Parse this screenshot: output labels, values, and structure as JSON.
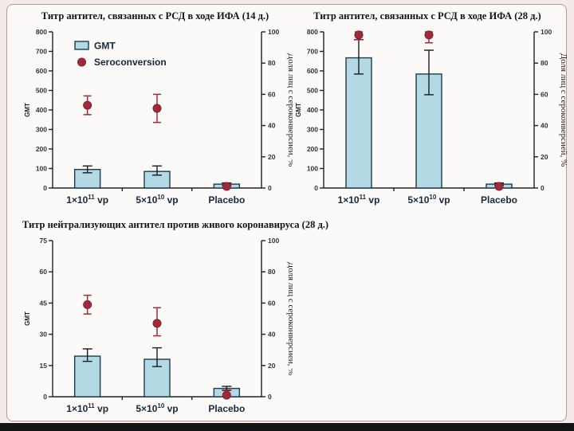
{
  "page": {
    "background": "#f2ebe9",
    "frame_background": "#fcfaf8",
    "frame_border_color": "#c09595",
    "bottom_bar_color": "#131313"
  },
  "colors": {
    "bar_fill": "#b3d9e4",
    "bar_stroke": "#1e3a50",
    "bar_error": "#1b1b1b",
    "dot_fill": "#a02a38",
    "dot_stroke": "#7e1f2b",
    "dot_error": "#a02a38",
    "axis": "#222222",
    "tick_label": "#333333",
    "category_label": "#16293f",
    "legend_text": "#15273c",
    "title_text": "#141414"
  },
  "chart_data": [
    {
      "type": "bar",
      "title": "Титр антител, связанных с РСД в ходе ИФА (14 д.)",
      "categories": [
        "1×10¹¹ vp",
        "5×10¹⁰ vp",
        "Placebo"
      ],
      "categories_rich": [
        {
          "base": "1×10",
          "exp": "11",
          "suffix": " vp"
        },
        {
          "base": "5×10",
          "exp": "10",
          "suffix": " vp"
        },
        {
          "base": "Placebo",
          "exp": "",
          "suffix": ""
        }
      ],
      "left_axis": {
        "label": "GMT",
        "min": 0,
        "max": 800,
        "step": 100
      },
      "right_axis": {
        "label": "Доля лиц с сероконверсией, %",
        "min": 0,
        "max": 100,
        "step": 20
      },
      "legend": true,
      "legend_position": "upper-left",
      "grid": false,
      "series": [
        {
          "name": "GMT",
          "kind": "bar",
          "axis": "left",
          "values": [
            95,
            85,
            20
          ],
          "err_low": [
            78,
            66,
            14
          ],
          "err_high": [
            113,
            113,
            26
          ]
        },
        {
          "name": "Seroconversion",
          "kind": "point",
          "axis": "right",
          "values": [
            53,
            51,
            1
          ],
          "err_low": [
            47,
            42,
            0
          ],
          "err_high": [
            59,
            60,
            2
          ]
        }
      ]
    },
    {
      "type": "bar",
      "title": "Титр антител, связанных с РСД в ходе ИФА (28 д.)",
      "categories": [
        "1×10¹¹ vp",
        "5×10¹⁰ vp",
        "Placebo"
      ],
      "categories_rich": [
        {
          "base": "1×10",
          "exp": "11",
          "suffix": " vp"
        },
        {
          "base": "5×10",
          "exp": "10",
          "suffix": " vp"
        },
        {
          "base": "Placebo",
          "exp": "",
          "suffix": ""
        }
      ],
      "left_axis": {
        "label": "GMT",
        "min": 0,
        "max": 800,
        "step": 100
      },
      "right_axis": {
        "label": "Доля лиц с сероконверсией, %",
        "min": 0,
        "max": 100,
        "step": 20
      },
      "legend": false,
      "grid": false,
      "series": [
        {
          "name": "GMT",
          "kind": "bar",
          "axis": "left",
          "values": [
            667,
            584,
            20
          ],
          "err_low": [
            584,
            478,
            14
          ],
          "err_high": [
            760,
            706,
            26
          ]
        },
        {
          "name": "Seroconversion",
          "kind": "point",
          "axis": "right",
          "values": [
            98,
            98,
            1
          ],
          "err_low": [
            95,
            93,
            0
          ],
          "err_high": [
            100,
            100,
            2
          ]
        }
      ]
    },
    {
      "type": "bar",
      "title": "Титр нейтрализующих антител против живого коронавируса (28 д.)",
      "categories": [
        "1×10¹¹ vp",
        "5×10¹⁰ vp",
        "Placebo"
      ],
      "categories_rich": [
        {
          "base": "1×10",
          "exp": "11",
          "suffix": " vp"
        },
        {
          "base": "5×10",
          "exp": "10",
          "suffix": " vp"
        },
        {
          "base": "Placebo",
          "exp": "",
          "suffix": ""
        }
      ],
      "left_axis": {
        "label": "GMT",
        "min": 0,
        "max": 75,
        "step": 15
      },
      "right_axis": {
        "label": "Доля лиц с сероконверсией, %",
        "min": 0,
        "max": 100,
        "step": 20
      },
      "legend": false,
      "grid": false,
      "series": [
        {
          "name": "GMT",
          "kind": "bar",
          "axis": "left",
          "values": [
            19.5,
            18,
            4
          ],
          "err_low": [
            17,
            14.5,
            3.2
          ],
          "err_high": [
            23,
            23.5,
            5
          ]
        },
        {
          "name": "Seroconversion",
          "kind": "point",
          "axis": "right",
          "values": [
            59,
            47,
            1
          ],
          "err_low": [
            53,
            39,
            0
          ],
          "err_high": [
            65,
            57,
            4
          ]
        }
      ]
    }
  ]
}
